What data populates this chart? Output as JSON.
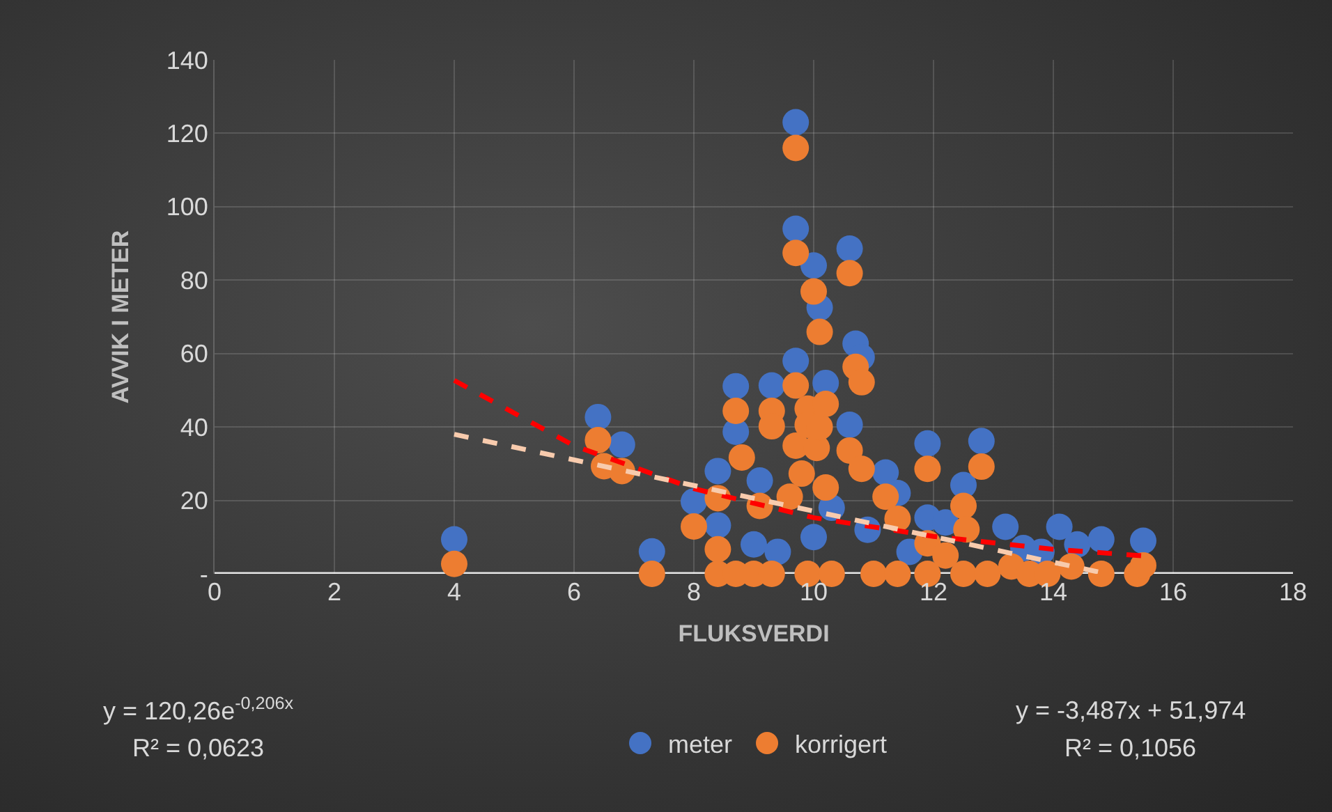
{
  "chart_data": {
    "type": "scatter",
    "xlabel": "FLUKSVERDI",
    "ylabel": "AVVIK I METER",
    "xlim": [
      0,
      18
    ],
    "xticks": [
      0,
      2,
      4,
      6,
      8,
      10,
      12,
      14,
      16,
      18
    ],
    "ylim": [
      0,
      140
    ],
    "yticks": [
      {
        "value": 0,
        "label": "-"
      },
      20,
      40,
      60,
      80,
      100,
      120,
      140
    ],
    "grid": true,
    "legend": "bottom",
    "marker": "circle",
    "annotations": [
      "y = 120,26e$^{-0,206x}$",
      "R² = 0,0623",
      "y = -3,487x + 51,974",
      "R² = 0,1056"
    ],
    "series": [
      {
        "name": "meter",
        "color": "#4472c4",
        "x": [
          4.0,
          6.4,
          6.8,
          7.3,
          8.0,
          8.4,
          8.4,
          8.7,
          8.7,
          9.0,
          9.1,
          9.3,
          9.4,
          9.7,
          9.7,
          9.7,
          10.0,
          10.0,
          10.1,
          10.2,
          10.3,
          10.6,
          10.6,
          10.7,
          10.8,
          10.9,
          11.2,
          11.4,
          11.6,
          11.9,
          11.9,
          12.2,
          12.5,
          12.8,
          13.2,
          13.5,
          13.8,
          14.1,
          14.4,
          14.8,
          15.5
        ],
        "values": [
          9.4,
          42.7,
          35.2,
          6.1,
          19.7,
          28,
          13.2,
          51.1,
          38.7,
          8,
          25.4,
          51.3,
          6,
          123,
          94,
          58,
          84,
          10,
          72.5,
          52,
          18,
          88.6,
          40.6,
          62.7,
          59,
          12,
          27.6,
          22,
          6,
          35.5,
          15.3,
          14,
          24.2,
          36.2,
          12.8,
          7,
          6,
          12.8,
          8,
          9.4,
          9
        ]
      },
      {
        "name": "korrigert",
        "color": "#ed7d31",
        "x": [
          4.0,
          6.4,
          6.5,
          6.8,
          7.3,
          8.0,
          8.4,
          8.4,
          8.4,
          8.7,
          8.7,
          8.8,
          9.0,
          9.1,
          9.3,
          9.3,
          9.3,
          9.6,
          9.7,
          9.7,
          9.7,
          9.7,
          9.8,
          9.9,
          9.9,
          9.9,
          10.0,
          10.05,
          10.1,
          10.1,
          10.2,
          10.2,
          10.3,
          10.6,
          10.6,
          10.7,
          10.8,
          10.8,
          11.0,
          11.2,
          11.4,
          11.4,
          11.9,
          11.9,
          11.9,
          12.2,
          12.5,
          12.55,
          12.5,
          12.8,
          12.9,
          13.3,
          13.6,
          13.9,
          14.3,
          14.8,
          15.4,
          15.5
        ],
        "values": [
          2.7,
          36.4,
          29.3,
          28,
          0,
          12.9,
          20.6,
          6.7,
          0,
          44.4,
          0,
          31.7,
          0,
          18.5,
          44.4,
          40.2,
          0,
          21,
          116,
          87.4,
          51.3,
          34.9,
          27.3,
          45,
          40.6,
          0,
          76.9,
          34.3,
          65.9,
          40,
          46.3,
          23.5,
          0,
          81.9,
          33.6,
          56.4,
          52.2,
          28.6,
          0,
          21,
          15,
          0,
          28.6,
          8.3,
          0,
          5,
          18.5,
          12.1,
          0,
          29.2,
          0,
          2,
          0,
          0,
          2,
          0,
          0,
          2.3
        ]
      },
      {
        "type": "line",
        "color": "#ff0000",
        "line_style": "dashed",
        "marker": "none",
        "x": [
          4,
          6,
          8,
          10,
          12,
          14,
          15.5
        ],
        "values": [
          52.7,
          34.9,
          23.2,
          15.3,
          10.2,
          6.7,
          4.9
        ]
      },
      {
        "type": "line",
        "color": "#f8cbad",
        "line_style": "dashed",
        "marker": "none",
        "x": [
          4,
          14.9
        ],
        "values": [
          38.0,
          0
        ]
      }
    ]
  }
}
